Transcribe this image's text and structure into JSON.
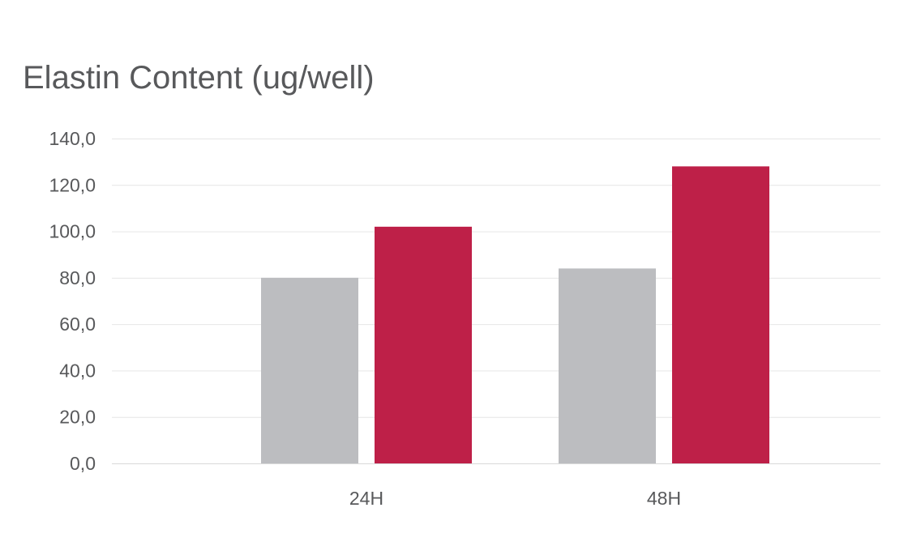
{
  "chart_data": {
    "type": "bar",
    "title": "Elastin Content (ug/well)",
    "categories": [
      "24H",
      "48H"
    ],
    "series": [
      {
        "values": [
          80,
          84
        ],
        "color": "#bcbdc0"
      },
      {
        "values": [
          102,
          128
        ],
        "color": "#be2048"
      }
    ],
    "ylim": [
      0,
      140
    ],
    "yticks": [
      0,
      20,
      40,
      60,
      80,
      100,
      120,
      140
    ],
    "ytick_labels": [
      "0,0",
      "20,0",
      "40,0",
      "60,0",
      "80,0",
      "100,0",
      "120,0",
      "140,0"
    ],
    "grid": true,
    "legend": "none"
  }
}
